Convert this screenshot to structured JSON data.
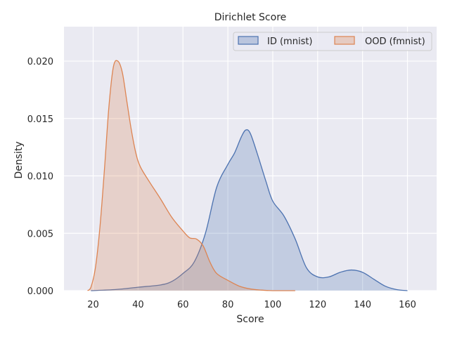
{
  "chart_data": {
    "type": "area",
    "title": "Dirichlet Score",
    "xlabel": "Score",
    "ylabel": "Density",
    "xlim": [
      7,
      173
    ],
    "ylim": [
      0,
      0.023
    ],
    "xticks": [
      20,
      40,
      60,
      80,
      100,
      120,
      140,
      160
    ],
    "xtick_labels": [
      "20",
      "40",
      "60",
      "80",
      "100",
      "120",
      "140",
      "160"
    ],
    "yticks": [
      0.0,
      0.005,
      0.01,
      0.015,
      0.02
    ],
    "ytick_labels": [
      "0.000",
      "0.005",
      "0.010",
      "0.015",
      "0.020"
    ],
    "grid": true,
    "legend_position": "top-right",
    "background": "#eaeaf2",
    "series": [
      {
        "name": "ID (mnist)",
        "line_color": "#4c72b0",
        "fill_color": "#4c72b0",
        "fill_opacity": 0.25,
        "x": [
          19,
          30,
          40,
          50,
          55,
          60,
          65,
          70,
          75,
          80,
          83,
          86,
          88,
          90,
          93,
          97,
          100,
          105,
          110,
          115,
          120,
          125,
          130,
          135,
          140,
          145,
          150,
          155,
          160
        ],
        "y": [
          0.0,
          0.0001,
          0.0003,
          0.0005,
          0.0008,
          0.0015,
          0.0025,
          0.005,
          0.009,
          0.011,
          0.012,
          0.0134,
          0.014,
          0.0137,
          0.012,
          0.0095,
          0.0078,
          0.0065,
          0.0045,
          0.002,
          0.0012,
          0.0012,
          0.0016,
          0.0018,
          0.0016,
          0.001,
          0.0004,
          0.0001,
          0.0
        ]
      },
      {
        "name": "OOD (fmnist)",
        "line_color": "#dd8452",
        "fill_color": "#dd8452",
        "fill_opacity": 0.25,
        "x": [
          17.5,
          19,
          21,
          23,
          25,
          27,
          29,
          31,
          33,
          35,
          37,
          39,
          41,
          45,
          50,
          55,
          60,
          63,
          66,
          69,
          72,
          75,
          80,
          85,
          90,
          95,
          100,
          105,
          110
        ],
        "y": [
          0.0,
          0.0003,
          0.002,
          0.0055,
          0.0105,
          0.016,
          0.0195,
          0.02,
          0.019,
          0.0165,
          0.014,
          0.012,
          0.0108,
          0.0095,
          0.008,
          0.0064,
          0.0052,
          0.0046,
          0.0045,
          0.0039,
          0.0025,
          0.0015,
          0.0009,
          0.0004,
          0.00015,
          5e-05,
          0.0,
          0.0,
          0.0
        ]
      }
    ]
  }
}
